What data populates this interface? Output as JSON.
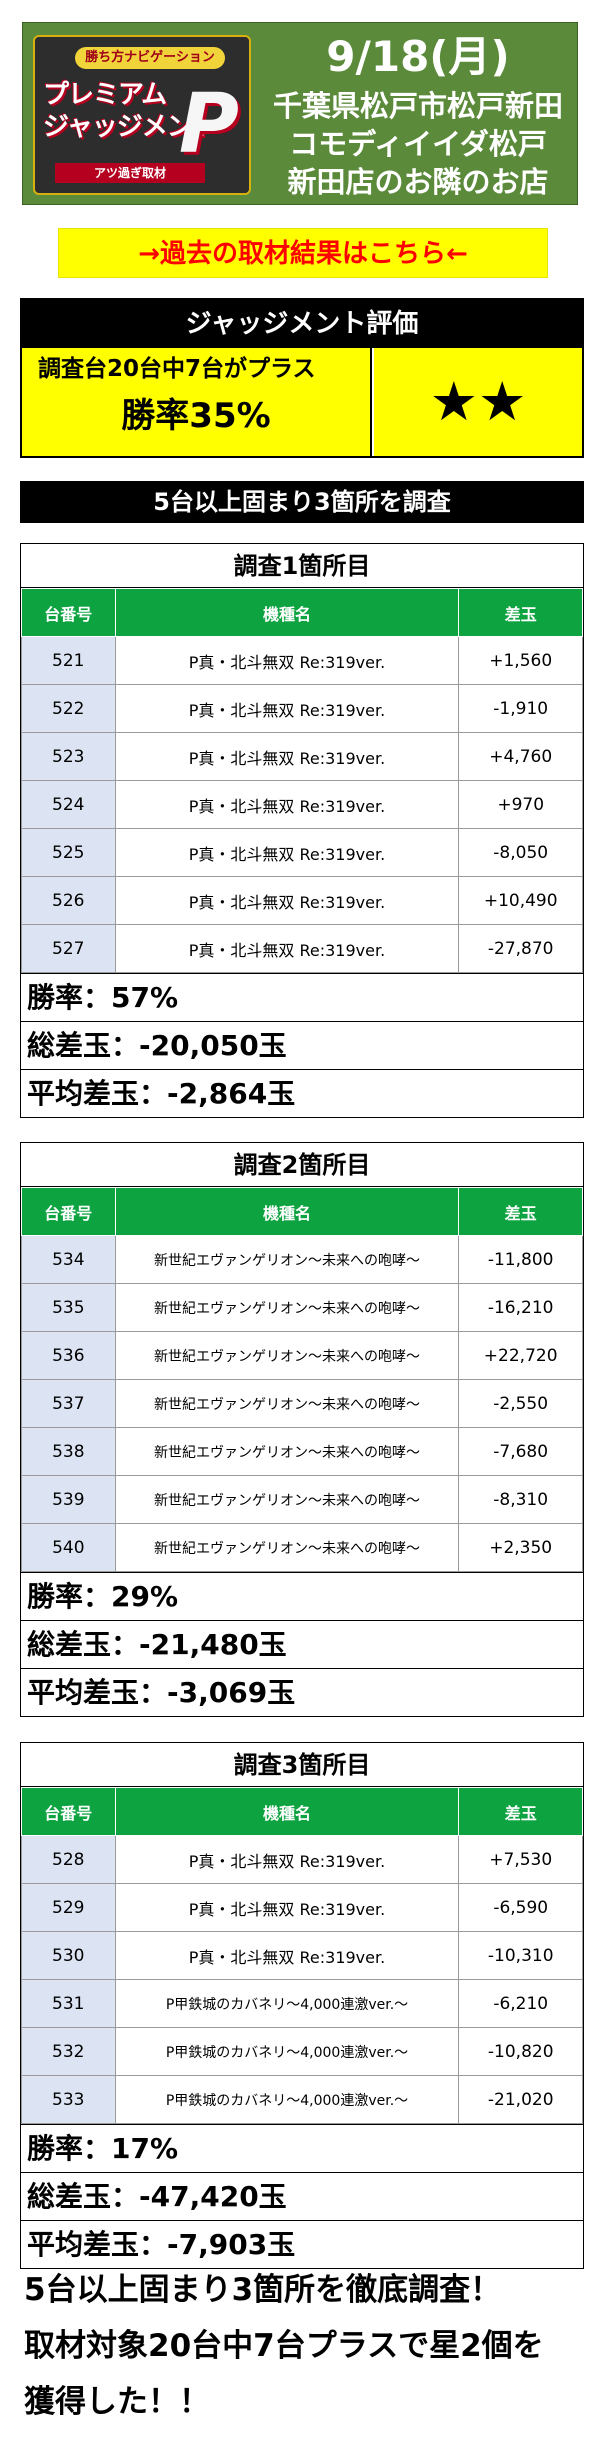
{
  "header": {
    "logo_sub": "勝ち方ナビゲーション",
    "logo_main_1": "プレミアム",
    "logo_main_2": "ジャッジメント",
    "logo_letter": "P",
    "logo_foot": "アツ過ぎ取材",
    "date": "9/18(月)",
    "location_1": "千葉県松戸市松戸新田",
    "location_2": "コモディイイダ松戸",
    "location_3": "新田店のお隣のお店"
  },
  "past_link": "→過去の取材結果はこちら←",
  "judgement": {
    "title": "ジャッジメント評価",
    "description": "調査台20台中7台がプラス",
    "win_rate": "勝率35%",
    "stars": "★★"
  },
  "survey_bar": "5台以上固まり3箇所を調査",
  "columns": {
    "number": "台番号",
    "machine": "機種名",
    "difference": "差玉"
  },
  "sections": [
    {
      "title": "調査1箇所目",
      "rows": [
        {
          "number": "521",
          "machine": "P真・北斗無双 Re:319ver.",
          "difference": "+1,560"
        },
        {
          "number": "522",
          "machine": "P真・北斗無双 Re:319ver.",
          "difference": "-1,910"
        },
        {
          "number": "523",
          "machine": "P真・北斗無双 Re:319ver.",
          "difference": "+4,760"
        },
        {
          "number": "524",
          "machine": "P真・北斗無双 Re:319ver.",
          "difference": "+970"
        },
        {
          "number": "525",
          "machine": "P真・北斗無双 Re:319ver.",
          "difference": "-8,050"
        },
        {
          "number": "526",
          "machine": "P真・北斗無双 Re:319ver.",
          "difference": "+10,490"
        },
        {
          "number": "527",
          "machine": "P真・北斗無双 Re:319ver.",
          "difference": "-27,870"
        }
      ],
      "win_rate": "勝率：57%",
      "total_diff": "総差玉：-20,050玉",
      "avg_diff": "平均差玉：-2,864玉"
    },
    {
      "title": "調査2箇所目",
      "rows": [
        {
          "number": "534",
          "machine": "新世紀エヴァンゲリオン～未来への咆哮～",
          "difference": "-11,800"
        },
        {
          "number": "535",
          "machine": "新世紀エヴァンゲリオン～未来への咆哮～",
          "difference": "-16,210"
        },
        {
          "number": "536",
          "machine": "新世紀エヴァンゲリオン～未来への咆哮～",
          "difference": "+22,720"
        },
        {
          "number": "537",
          "machine": "新世紀エヴァンゲリオン～未来への咆哮～",
          "difference": "-2,550"
        },
        {
          "number": "538",
          "machine": "新世紀エヴァンゲリオン～未来への咆哮～",
          "difference": "-7,680"
        },
        {
          "number": "539",
          "machine": "新世紀エヴァンゲリオン～未来への咆哮～",
          "difference": "-8,310"
        },
        {
          "number": "540",
          "machine": "新世紀エヴァンゲリオン～未来への咆哮～",
          "difference": "+2,350"
        }
      ],
      "win_rate": "勝率：29%",
      "total_diff": "総差玉：-21,480玉",
      "avg_diff": "平均差玉：-3,069玉"
    },
    {
      "title": "調査3箇所目",
      "rows": [
        {
          "number": "528",
          "machine": "P真・北斗無双 Re:319ver.",
          "difference": "+7,530"
        },
        {
          "number": "529",
          "machine": "P真・北斗無双 Re:319ver.",
          "difference": "-6,590"
        },
        {
          "number": "530",
          "machine": "P真・北斗無双 Re:319ver.",
          "difference": "-10,310"
        },
        {
          "number": "531",
          "machine": "P甲鉄城のカバネリ～4,000連激ver.～",
          "difference": "-6,210"
        },
        {
          "number": "532",
          "machine": "P甲鉄城のカバネリ～4,000連激ver.～",
          "difference": "-10,820"
        },
        {
          "number": "533",
          "machine": "P甲鉄城のカバネリ～4,000連激ver.～",
          "difference": "-21,020"
        }
      ],
      "win_rate": "勝率：17%",
      "total_diff": "総差玉：-47,420玉",
      "avg_diff": "平均差玉：-7,903玉"
    }
  ],
  "summary": {
    "line_1": "5台以上固まり3箇所を徹底調査！",
    "line_2": "取材対象20台中7台プラスで星2個を",
    "line_3": "獲得した！！"
  }
}
